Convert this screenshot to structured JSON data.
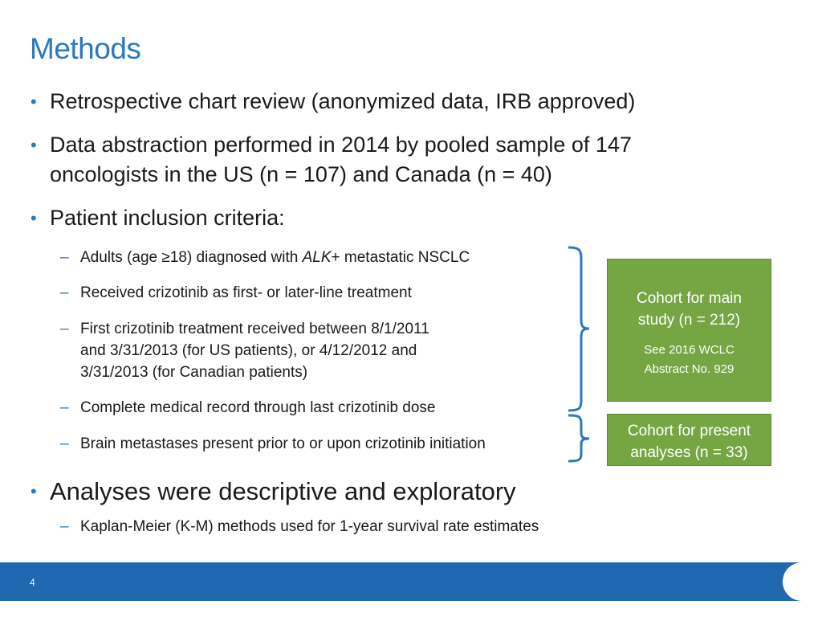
{
  "slide": {
    "title": "Methods",
    "bullets": [
      "Retrospective chart review (anonymized data, IRB approved)",
      "Data abstraction performed in 2014 by pooled sample of 147",
      "oncologists in the US (n = 107) and Canada (n = 40)",
      "Patient inclusion criteria:",
      "Analyses were descriptive and exploratory"
    ],
    "criteria": {
      "c1_prefix": "Adults (age ≥18) diagnosed with ",
      "c1_italic": "ALK",
      "c1_suffix": "+ metastatic NSCLC",
      "c2": "Received crizotinib as first- or later-line treatment",
      "c3_line1": "First crizotinib treatment received between 8/1/2011",
      "c3_line2": "and 3/31/2013 (for US patients), or 4/12/2012 and",
      "c3_line3": "3/31/2013 (for Canadian patients)",
      "c4": "Complete medical record through last crizotinib dose",
      "c5": "Brain metastases present prior to or upon crizotinib initiation"
    },
    "analysis_sub": "Kaplan-Meier (K-M) methods used for 1-year survival rate estimates",
    "cohort_main": {
      "line1": "Cohort for main",
      "line2": "study (n = 212)",
      "note1": "See 2016 WCLC",
      "note2": "Abstract No. 929"
    },
    "cohort_present": {
      "line1": "Cohort for present",
      "line2": "analyses (n = 33)"
    },
    "bullet_symbol": "•",
    "dash_symbol": "–",
    "page_number": "4"
  },
  "colors": {
    "accent_blue": "#2a78bd",
    "footer_blue": "#2068b0",
    "cohort_green": "#76a644",
    "text": "#1a1a1a"
  }
}
